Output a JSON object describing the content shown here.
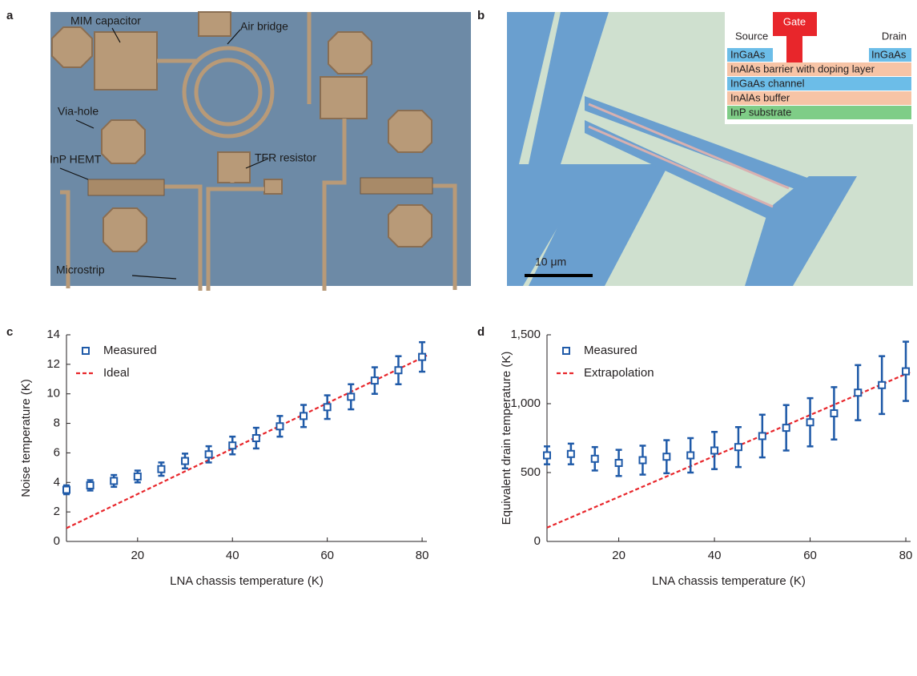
{
  "panel_labels": [
    "a",
    "b",
    "c",
    "d"
  ],
  "panel_a": {
    "annotations": [
      "MIM capacitor",
      "Air bridge",
      "Via-hole",
      "InP HEMT",
      "TFR resistor",
      "Microstrip"
    ]
  },
  "panel_b": {
    "gate": "Gate",
    "source": "Source",
    "drain": "Drain",
    "cap_left": "InGaAs",
    "cap_right": "InGaAs",
    "stack": [
      "InAlAs barrier with doping layer",
      "InGaAs channel",
      "InAlAs buffer",
      "InP substrate"
    ],
    "scale_bar": "10 μm"
  },
  "chart_data": [
    {
      "type": "scatter",
      "xlabel": "LNA chassis temperature (K)",
      "ylabel": "Noise temperature (K)",
      "x": [
        5,
        10,
        15,
        20,
        25,
        30,
        35,
        40,
        45,
        50,
        55,
        60,
        65,
        70,
        75,
        80
      ],
      "xlim": [
        5,
        81
      ],
      "xticks": [
        20,
        40,
        60,
        80
      ],
      "ylim": [
        0,
        14
      ],
      "yticks": [
        0,
        2,
        4,
        6,
        8,
        10,
        12,
        14
      ],
      "series": [
        {
          "name": "Measured",
          "color": "#1f5aa8",
          "values": [
            3.5,
            3.8,
            4.1,
            4.4,
            4.9,
            5.45,
            5.9,
            6.5,
            7.0,
            7.8,
            8.5,
            9.1,
            9.8,
            10.9,
            11.6,
            12.5
          ],
          "errors": [
            0.3,
            0.35,
            0.4,
            0.4,
            0.45,
            0.5,
            0.55,
            0.6,
            0.7,
            0.7,
            0.75,
            0.8,
            0.85,
            0.9,
            0.95,
            1.0
          ]
        }
      ],
      "lines": [
        {
          "name": "Ideal",
          "color": "#e8262b",
          "x": [
            5,
            81
          ],
          "values": [
            0.9,
            12.6
          ]
        }
      ]
    },
    {
      "type": "scatter",
      "xlabel": "LNA chassis temperature (K)",
      "ylabel": "Equivalent drain temperature (K)",
      "x": [
        5,
        10,
        15,
        20,
        25,
        30,
        35,
        40,
        45,
        50,
        55,
        60,
        65,
        70,
        75,
        80
      ],
      "xlim": [
        5,
        81
      ],
      "xticks": [
        20,
        40,
        60,
        80
      ],
      "ylim": [
        0,
        1500
      ],
      "yticks": [
        0,
        500,
        {
          "value": 1000,
          "label": "1,000"
        },
        {
          "value": 1500,
          "label": "1,500"
        }
      ],
      "series": [
        {
          "name": "Measured",
          "color": "#1f5aa8",
          "values": [
            625,
            635,
            600,
            570,
            590,
            615,
            625,
            660,
            685,
            765,
            825,
            865,
            930,
            1080,
            1135,
            1235
          ],
          "errors": [
            65,
            75,
            85,
            95,
            105,
            120,
            125,
            135,
            145,
            155,
            165,
            175,
            190,
            200,
            210,
            215
          ]
        }
      ],
      "lines": [
        {
          "name": "Extrapolation",
          "color": "#e8262b",
          "x": [
            5,
            81
          ],
          "values": [
            100,
            1230
          ]
        }
      ]
    }
  ]
}
